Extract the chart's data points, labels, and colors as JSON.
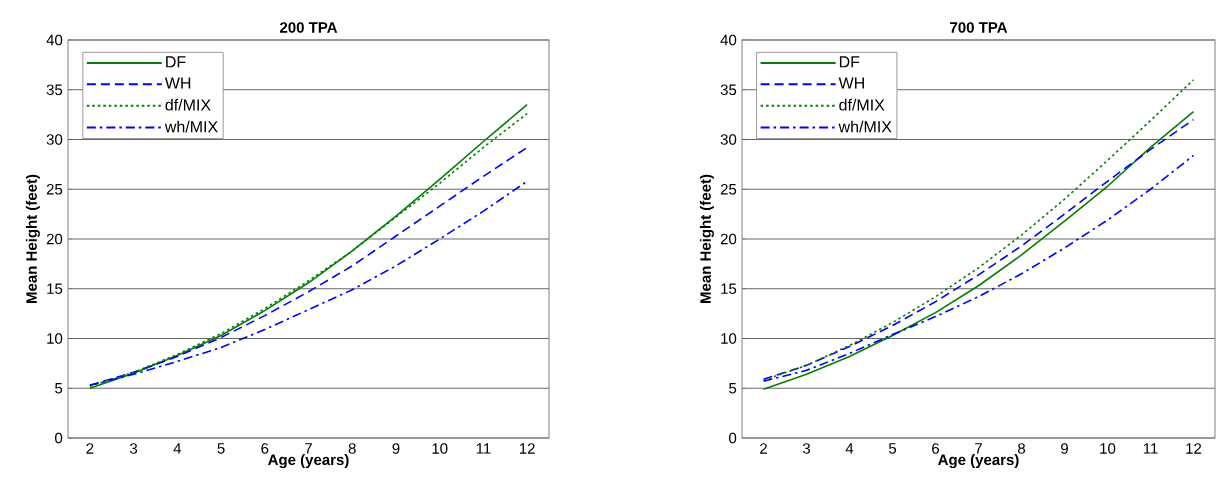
{
  "chart_data": [
    {
      "type": "line",
      "title": "200 TPA",
      "xlabel": "Age (years)",
      "ylabel": "Mean Height (feet)",
      "categories": [
        "2",
        "3",
        "4",
        "5",
        "6",
        "7",
        "8",
        "9",
        "10",
        "11",
        "12"
      ],
      "series": [
        {
          "name": "DF",
          "color": "#008000",
          "line_style": "solid",
          "values": [
            5.0,
            6.5,
            8.3,
            10.3,
            12.8,
            15.6,
            18.8,
            22.3,
            26.0,
            29.8,
            33.5
          ]
        },
        {
          "name": "WH",
          "color": "#0000ff",
          "line_style": "dashed",
          "values": [
            5.3,
            6.6,
            8.2,
            10.1,
            12.3,
            14.7,
            17.3,
            20.3,
            23.3,
            26.3,
            29.2
          ]
        },
        {
          "name": "df/MIX",
          "color": "#008000",
          "line_style": "dotted",
          "values": [
            5.2,
            6.6,
            8.4,
            10.5,
            13.0,
            15.8,
            18.8,
            22.2,
            25.6,
            29.2,
            32.6
          ]
        },
        {
          "name": "wh/MIX",
          "color": "#0000ff",
          "line_style": "dashdot",
          "values": [
            5.3,
            6.4,
            7.7,
            9.1,
            10.9,
            12.9,
            14.9,
            17.3,
            20.0,
            22.8,
            25.8
          ]
        }
      ],
      "ylim": [
        0,
        40
      ],
      "yticks": [
        0,
        5,
        10,
        15,
        20,
        25,
        30,
        35,
        40
      ],
      "grid": "y",
      "legend": "top left"
    },
    {
      "type": "line",
      "title": "700 TPA",
      "xlabel": "Age (years)",
      "ylabel": "Mean Height (feet)",
      "categories": [
        "2",
        "3",
        "4",
        "5",
        "6",
        "7",
        "8",
        "9",
        "10",
        "11",
        "12"
      ],
      "series": [
        {
          "name": "DF",
          "color": "#008000",
          "line_style": "solid",
          "values": [
            4.9,
            6.4,
            8.2,
            10.3,
            12.6,
            15.3,
            18.4,
            21.8,
            25.3,
            29.2,
            32.8
          ]
        },
        {
          "name": "WH",
          "color": "#0000ff",
          "line_style": "dashed",
          "values": [
            5.9,
            7.3,
            9.2,
            11.3,
            13.7,
            16.4,
            19.3,
            22.5,
            25.8,
            29.0,
            32.0
          ]
        },
        {
          "name": "df/MIX",
          "color": "#008000",
          "line_style": "dotted",
          "values": [
            5.8,
            7.3,
            9.3,
            11.6,
            14.2,
            17.1,
            20.4,
            24.0,
            27.9,
            31.9,
            36.0
          ]
        },
        {
          "name": "wh/MIX",
          "color": "#0000ff",
          "line_style": "dashdot",
          "values": [
            5.7,
            6.8,
            8.5,
            10.4,
            12.2,
            14.2,
            16.5,
            19.1,
            21.9,
            25.0,
            28.4
          ]
        }
      ],
      "ylim": [
        0,
        40
      ],
      "yticks": [
        0,
        5,
        10,
        15,
        20,
        25,
        30,
        35,
        40
      ],
      "grid": "y",
      "legend": "top left"
    }
  ]
}
